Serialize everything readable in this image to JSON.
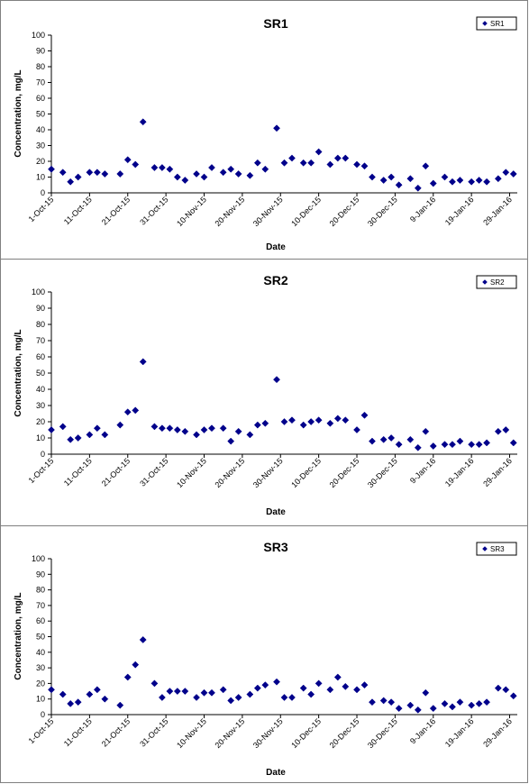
{
  "chart_data": [
    {
      "type": "scatter",
      "title": "SR1",
      "xlabel": "Date",
      "ylabel": "Concentration, mg/L",
      "ylim": [
        0,
        100
      ],
      "yticks": [
        "0",
        "10",
        "20",
        "30",
        "40",
        "50",
        "60",
        "70",
        "80",
        "90",
        "100"
      ],
      "x_range": [
        "2015-10-01",
        "2016-01-31"
      ],
      "xticks": [
        "1-Oct-15",
        "11-Oct-15",
        "21-Oct-15",
        "31-Oct-15",
        "10-Nov-15",
        "20-Nov-15",
        "30-Nov-15",
        "10-Dec-15",
        "20-Dec-15",
        "30-Dec-15",
        "9-Jan-16",
        "19-Jan-16",
        "29-Jan-16"
      ],
      "grid": false,
      "legend": "top-right",
      "color": "#00008B",
      "series": [
        {
          "name": "SR1",
          "x": [
            "2015-10-01",
            "2015-10-04",
            "2015-10-06",
            "2015-10-08",
            "2015-10-11",
            "2015-10-13",
            "2015-10-15",
            "2015-10-19",
            "2015-10-21",
            "2015-10-23",
            "2015-10-25",
            "2015-10-28",
            "2015-10-30",
            "2015-11-01",
            "2015-11-03",
            "2015-11-05",
            "2015-11-08",
            "2015-11-10",
            "2015-11-12",
            "2015-11-15",
            "2015-11-17",
            "2015-11-19",
            "2015-11-22",
            "2015-11-24",
            "2015-11-26",
            "2015-11-29",
            "2015-12-01",
            "2015-12-03",
            "2015-12-06",
            "2015-12-08",
            "2015-12-10",
            "2015-12-13",
            "2015-12-15",
            "2015-12-17",
            "2015-12-20",
            "2015-12-22",
            "2015-12-24",
            "2015-12-27",
            "2015-12-29",
            "2015-12-31",
            "2016-01-03",
            "2016-01-05",
            "2016-01-07",
            "2016-01-09",
            "2016-01-12",
            "2016-01-14",
            "2016-01-16",
            "2016-01-19",
            "2016-01-21",
            "2016-01-23",
            "2016-01-26",
            "2016-01-28",
            "2016-01-30"
          ],
          "y": [
            15,
            13,
            7,
            10,
            13,
            13,
            12,
            12,
            21,
            18,
            45,
            16,
            16,
            15,
            10,
            8,
            12,
            10,
            16,
            13,
            15,
            12,
            11,
            19,
            15,
            41,
            19,
            22,
            19,
            19,
            26,
            18,
            22,
            22,
            18,
            17,
            10,
            8,
            10,
            5,
            9,
            3,
            17,
            6,
            10,
            7,
            8,
            7,
            8,
            7,
            9,
            13,
            12
          ]
        }
      ]
    },
    {
      "type": "scatter",
      "title": "SR2",
      "xlabel": "Date",
      "ylabel": "Concentration, mg/L",
      "ylim": [
        0,
        100
      ],
      "yticks": [
        "0",
        "10",
        "20",
        "30",
        "40",
        "50",
        "60",
        "70",
        "80",
        "90",
        "100"
      ],
      "x_range": [
        "2015-10-01",
        "2016-01-31"
      ],
      "xticks": [
        "1-Oct-15",
        "11-Oct-15",
        "21-Oct-15",
        "31-Oct-15",
        "10-Nov-15",
        "20-Nov-15",
        "30-Nov-15",
        "10-Dec-15",
        "20-Dec-15",
        "30-Dec-15",
        "9-Jan-16",
        "19-Jan-16",
        "29-Jan-16"
      ],
      "grid": false,
      "legend": "top-right",
      "color": "#00008B",
      "series": [
        {
          "name": "SR2",
          "x": [
            "2015-10-01",
            "2015-10-04",
            "2015-10-06",
            "2015-10-08",
            "2015-10-11",
            "2015-10-13",
            "2015-10-15",
            "2015-10-19",
            "2015-10-21",
            "2015-10-23",
            "2015-10-25",
            "2015-10-28",
            "2015-10-30",
            "2015-11-01",
            "2015-11-03",
            "2015-11-05",
            "2015-11-08",
            "2015-11-10",
            "2015-11-12",
            "2015-11-15",
            "2015-11-17",
            "2015-11-19",
            "2015-11-22",
            "2015-11-24",
            "2015-11-26",
            "2015-11-29",
            "2015-12-01",
            "2015-12-03",
            "2015-12-06",
            "2015-12-08",
            "2015-12-10",
            "2015-12-13",
            "2015-12-15",
            "2015-12-17",
            "2015-12-20",
            "2015-12-22",
            "2015-12-24",
            "2015-12-27",
            "2015-12-29",
            "2015-12-31",
            "2016-01-03",
            "2016-01-05",
            "2016-01-07",
            "2016-01-09",
            "2016-01-12",
            "2016-01-14",
            "2016-01-16",
            "2016-01-19",
            "2016-01-21",
            "2016-01-23",
            "2016-01-26",
            "2016-01-28",
            "2016-01-30"
          ],
          "y": [
            15,
            17,
            9,
            10,
            12,
            16,
            12,
            18,
            26,
            27,
            57,
            17,
            16,
            16,
            15,
            14,
            12,
            15,
            16,
            16,
            8,
            14,
            12,
            18,
            19,
            46,
            20,
            21,
            18,
            20,
            21,
            19,
            22,
            21,
            15,
            24,
            8,
            9,
            10,
            6,
            9,
            4,
            14,
            5,
            6,
            6,
            8,
            6,
            6,
            7,
            14,
            15,
            7
          ]
        }
      ]
    },
    {
      "type": "scatter",
      "title": "SR3",
      "xlabel": "Date",
      "ylabel": "Concentration, mg/L",
      "ylim": [
        0,
        100
      ],
      "yticks": [
        "0",
        "10",
        "20",
        "30",
        "40",
        "50",
        "60",
        "70",
        "80",
        "90",
        "100"
      ],
      "x_range": [
        "2015-10-01",
        "2016-01-31"
      ],
      "xticks": [
        "1-Oct-15",
        "11-Oct-15",
        "21-Oct-15",
        "31-Oct-15",
        "10-Nov-15",
        "20-Nov-15",
        "30-Nov-15",
        "10-Dec-15",
        "20-Dec-15",
        "30-Dec-15",
        "9-Jan-16",
        "19-Jan-16",
        "29-Jan-16"
      ],
      "grid": false,
      "legend": "top-right",
      "color": "#00008B",
      "series": [
        {
          "name": "SR3",
          "x": [
            "2015-10-01",
            "2015-10-04",
            "2015-10-06",
            "2015-10-08",
            "2015-10-11",
            "2015-10-13",
            "2015-10-15",
            "2015-10-19",
            "2015-10-21",
            "2015-10-23",
            "2015-10-25",
            "2015-10-28",
            "2015-10-30",
            "2015-11-01",
            "2015-11-03",
            "2015-11-05",
            "2015-11-08",
            "2015-11-10",
            "2015-11-12",
            "2015-11-15",
            "2015-11-17",
            "2015-11-19",
            "2015-11-22",
            "2015-11-24",
            "2015-11-26",
            "2015-11-29",
            "2015-12-01",
            "2015-12-03",
            "2015-12-06",
            "2015-12-08",
            "2015-12-10",
            "2015-12-13",
            "2015-12-15",
            "2015-12-17",
            "2015-12-20",
            "2015-12-22",
            "2015-12-24",
            "2015-12-27",
            "2015-12-29",
            "2015-12-31",
            "2016-01-03",
            "2016-01-05",
            "2016-01-07",
            "2016-01-09",
            "2016-01-12",
            "2016-01-14",
            "2016-01-16",
            "2016-01-19",
            "2016-01-21",
            "2016-01-23",
            "2016-01-26",
            "2016-01-28",
            "2016-01-30"
          ],
          "y": [
            16,
            13,
            7,
            8,
            13,
            16,
            10,
            6,
            24,
            32,
            48,
            20,
            11,
            15,
            15,
            15,
            11,
            14,
            14,
            16,
            9,
            11,
            13,
            17,
            19,
            21,
            11,
            11,
            17,
            13,
            20,
            16,
            24,
            18,
            16,
            19,
            8,
            9,
            8,
            4,
            6,
            3,
            14,
            4,
            7,
            5,
            8,
            6,
            7,
            8,
            17,
            16,
            12
          ]
        }
      ]
    }
  ]
}
